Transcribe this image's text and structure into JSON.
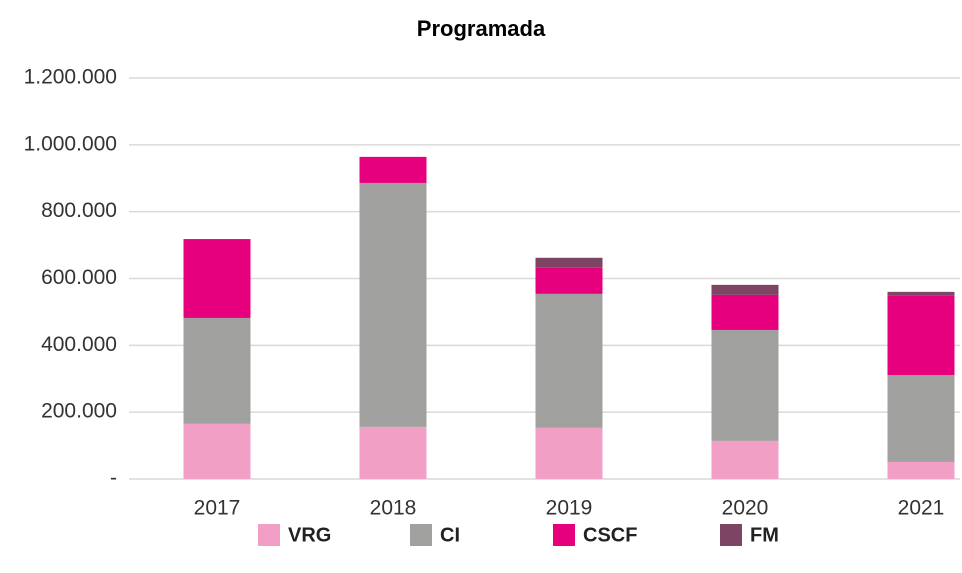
{
  "chart_data": {
    "type": "stacked_bar",
    "title": "Programada",
    "categories": [
      "2017",
      "2018",
      "2019",
      "2020",
      "2021"
    ],
    "series": [
      {
        "name": "VRG",
        "color": "#f29fc5",
        "values": [
          165000,
          156000,
          153000,
          114000,
          51000
        ]
      },
      {
        "name": "CI",
        "color": "#a0a09f",
        "values": [
          317000,
          730000,
          401000,
          332000,
          260000
        ]
      },
      {
        "name": "CSCF",
        "color": "#e6007e",
        "values": [
          236000,
          78000,
          78000,
          105000,
          237000
        ]
      },
      {
        "name": "FM",
        "color": "#7d4563",
        "values": [
          0,
          0,
          30000,
          30000,
          12000
        ]
      }
    ],
    "ylim": [
      0,
      1200000
    ],
    "yticks": [
      {
        "value": 0,
        "label": "-"
      },
      {
        "value": 200000,
        "label": "200.000"
      },
      {
        "value": 400000,
        "label": "400.000"
      },
      {
        "value": 600000,
        "label": "600.000"
      },
      {
        "value": 800000,
        "label": "800.000"
      },
      {
        "value": 1000000,
        "label": "1.000.000"
      },
      {
        "value": 1200000,
        "label": "1.200.000"
      }
    ],
    "grid": true
  }
}
